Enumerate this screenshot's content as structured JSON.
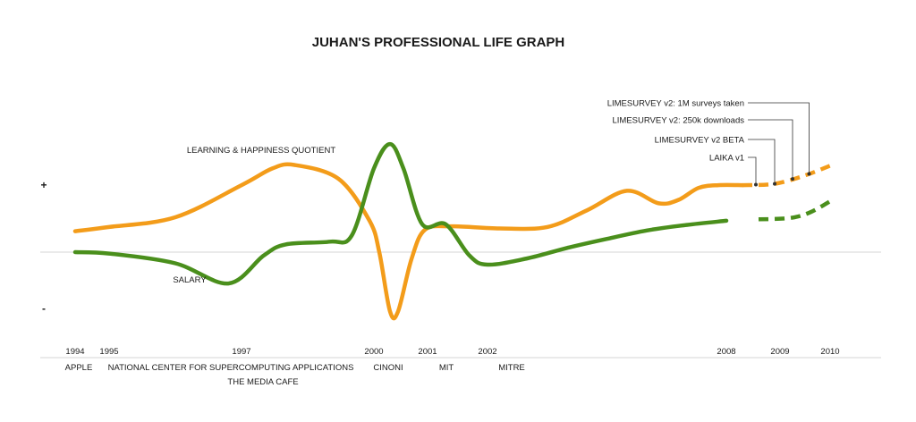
{
  "chart_data": {
    "type": "line",
    "title": "JUHAN'S PROFESSIONAL LIFE GRAPH",
    "y_positive_label": "+",
    "y_negative_label": "-",
    "colors": {
      "learning": "#f39c1a",
      "salary": "#4a8f1c",
      "axis": "#cccccc",
      "text": "#1a1a1a",
      "leader": "#333333"
    },
    "year_ticks": [
      "1994",
      "1995",
      "1997",
      "2000",
      "2001",
      "2002",
      "2008",
      "2009",
      "2010"
    ],
    "employers": [
      "APPLE",
      "NATIONAL CENTER FOR SUPERCOMPUTING APPLICATIONS",
      "THE MEDIA CAFE",
      "CINONI",
      "MIT",
      "MITRE"
    ],
    "series": [
      {
        "name": "LEARNING & HAPPINESS QUOTIENT",
        "projected_after": 2008.3,
        "points": [
          [
            1994.0,
            0.3
          ],
          [
            1995.0,
            0.36
          ],
          [
            1996.0,
            0.5
          ],
          [
            1997.0,
            0.96
          ],
          [
            1997.7,
            1.2
          ],
          [
            1998.2,
            1.25
          ],
          [
            1999.2,
            1.05
          ],
          [
            1999.9,
            0.45
          ],
          [
            2000.1,
            0.0
          ],
          [
            2000.3,
            -0.85
          ],
          [
            2000.45,
            -0.85
          ],
          [
            2000.7,
            -0.1
          ],
          [
            2000.95,
            0.32
          ],
          [
            2001.4,
            0.37
          ],
          [
            2002.3,
            0.34
          ],
          [
            2003.5,
            0.36
          ],
          [
            2004.5,
            0.6
          ],
          [
            2005.5,
            0.88
          ],
          [
            2006.3,
            0.7
          ],
          [
            2006.8,
            0.75
          ],
          [
            2007.3,
            0.92
          ],
          [
            2007.8,
            0.96
          ],
          [
            2008.3,
            0.96
          ],
          [
            2008.9,
            0.98
          ],
          [
            2009.5,
            1.1
          ],
          [
            2010.0,
            1.24
          ]
        ]
      },
      {
        "name": "SALARY",
        "projected_after": 2008.3,
        "points": [
          [
            1994.0,
            0.0
          ],
          [
            1995.0,
            -0.02
          ],
          [
            1996.0,
            -0.16
          ],
          [
            1996.8,
            -0.45
          ],
          [
            1997.5,
            -0.05
          ],
          [
            1998.0,
            0.11
          ],
          [
            1999.0,
            0.15
          ],
          [
            1999.5,
            0.24
          ],
          [
            2000.0,
            1.2
          ],
          [
            2000.3,
            1.55
          ],
          [
            2000.55,
            1.2
          ],
          [
            2000.9,
            0.4
          ],
          [
            2001.3,
            0.4
          ],
          [
            2001.7,
            -0.05
          ],
          [
            2002.0,
            -0.18
          ],
          [
            2003.0,
            -0.09
          ],
          [
            2004.0,
            0.06
          ],
          [
            2005.0,
            0.19
          ],
          [
            2006.0,
            0.31
          ],
          [
            2007.0,
            0.39
          ],
          [
            2008.0,
            0.45
          ],
          [
            2008.6,
            0.47
          ],
          [
            2009.2,
            0.49
          ],
          [
            2009.6,
            0.57
          ],
          [
            2010.0,
            0.73
          ]
        ]
      }
    ],
    "annotations": [
      {
        "label": "LIMESURVEY v2: 1M surveys taken",
        "year": 2009.58
      },
      {
        "label": "LIMESURVEY v2: 250k downloads",
        "year": 2009.25
      },
      {
        "label": "LIMESURVEY v2 BETA",
        "year": 2008.9
      },
      {
        "label": "LAIKA v1",
        "year": 2008.55
      }
    ]
  }
}
